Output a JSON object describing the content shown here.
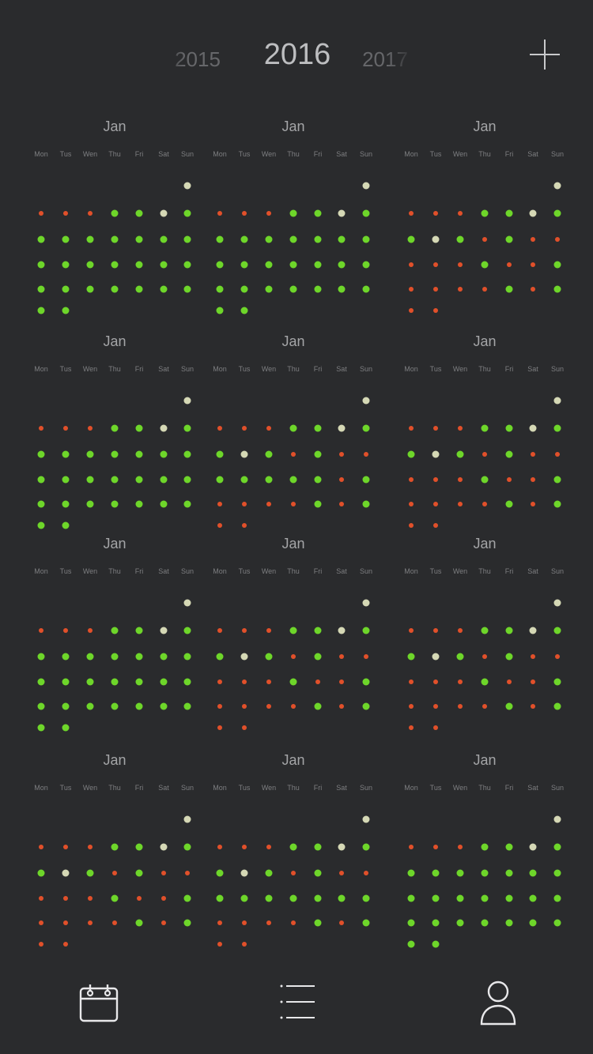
{
  "years": {
    "previous": "2015",
    "current": "2016",
    "next": "2017"
  },
  "weekdays": [
    "Mon",
    "Tus",
    "Wen",
    "Thu",
    "Fri",
    "Sat",
    "Sun"
  ],
  "legend_colors": {
    "green": "#6ed62a",
    "white": "#d5d8b5",
    "red": "#e1502a"
  },
  "months": [
    {
      "title": "Jan",
      "rows": [
        "......w",
        "rrrggwg",
        "ggggggg",
        "ggggggg",
        "ggggggg",
        "gg....."
      ]
    },
    {
      "title": "Jan",
      "rows": [
        "......w",
        "rrrggwg",
        "ggggggg",
        "ggggggg",
        "ggggggg",
        "gg....."
      ]
    },
    {
      "title": "Jan",
      "rows": [
        "......w",
        "rrrggwg",
        "gwgrgrr",
        "rrrgrrg",
        "rrrrgrg",
        "rr....."
      ]
    },
    {
      "title": "Jan",
      "rows": [
        "......w",
        "rrrggwg",
        "ggggggg",
        "ggggggg",
        "ggggggg",
        "gg....."
      ]
    },
    {
      "title": "Jan",
      "rows": [
        "......w",
        "rrrggwg",
        "gwgrgrr",
        "gggggrg",
        "rrrrgrg",
        "rr....."
      ]
    },
    {
      "title": "Jan",
      "rows": [
        "......w",
        "rrrggwg",
        "gwgrgrr",
        "rrrgrrg",
        "rrrrgrg",
        "rr....."
      ]
    },
    {
      "title": "Jan",
      "rows": [
        "......w",
        "rrrggwg",
        "ggggggg",
        "ggggggg",
        "ggggggg",
        "gg....."
      ]
    },
    {
      "title": "Jan",
      "rows": [
        "......w",
        "rrrggwg",
        "gwgrgrr",
        "rrrgrrg",
        "rrrrgrg",
        "rr....."
      ]
    },
    {
      "title": "Jan",
      "rows": [
        "......w",
        "rrrggwg",
        "gwgrgrr",
        "rrrgrrg",
        "rrrrgrg",
        "rr....."
      ]
    },
    {
      "title": "Jan",
      "rows": [
        "......w",
        "rrrggwg",
        "gwgrgrr",
        "rrrgrrg",
        "rrrrgrg",
        "rr....."
      ]
    },
    {
      "title": "Jan",
      "rows": [
        "......w",
        "rrrggwg",
        "gwgrgrr",
        "ggggggg",
        "rrrrgrg",
        "rr....."
      ]
    },
    {
      "title": "Jan",
      "rows": [
        "......w",
        "rrrggwg",
        "ggggggg",
        "ggggggg",
        "ggggggg",
        "gg....."
      ]
    }
  ],
  "tabs": [
    {
      "name": "calendar",
      "icon": "calendar-icon"
    },
    {
      "name": "list",
      "icon": "list-icon"
    },
    {
      "name": "profile",
      "icon": "profile-icon"
    }
  ]
}
